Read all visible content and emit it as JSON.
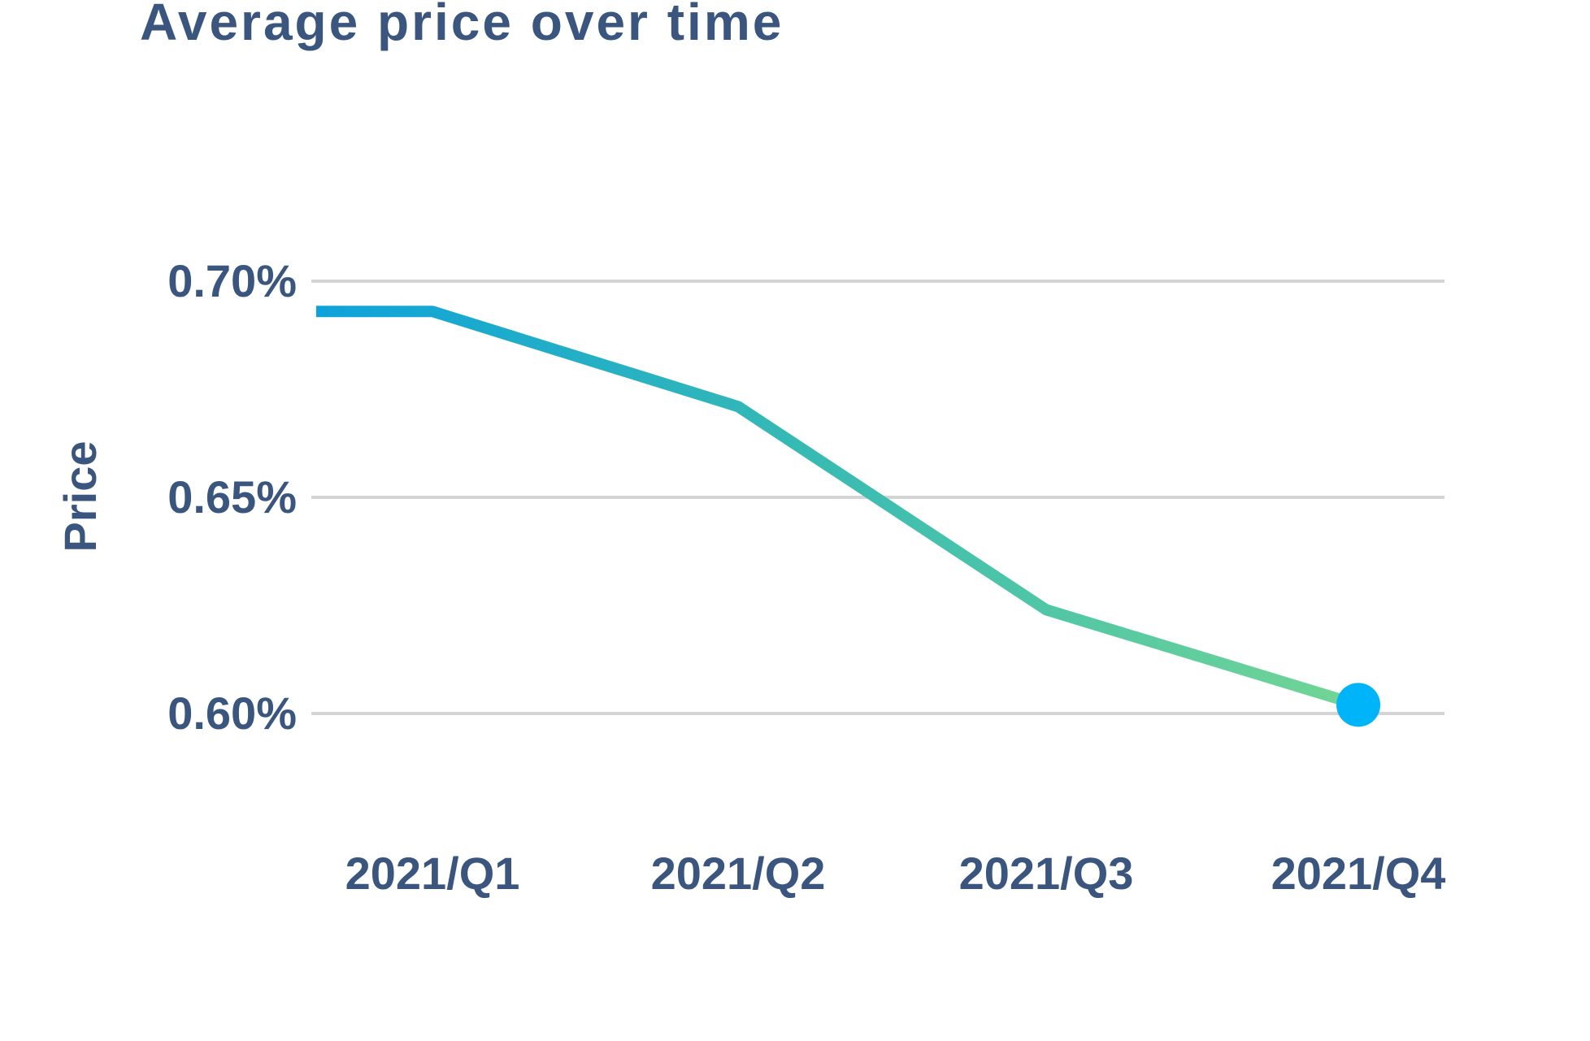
{
  "title": "Average price over time",
  "colors": {
    "heading_text": "#3b567e",
    "grid_line": "#d4d4d4",
    "line_gradient_start": "#0da2db",
    "line_gradient_mid": "#35b9b5",
    "line_gradient_end": "#72d694",
    "end_dot": "#00b4fa",
    "card_background": "#ffffff"
  },
  "chart_data": {
    "type": "line",
    "title": "Average price over time",
    "xlabel": "",
    "ylabel": "Price",
    "categories": [
      "2021/Q1",
      "2021/Q2",
      "2021/Q3",
      "2021/Q4"
    ],
    "values": [
      0.693,
      0.671,
      0.624,
      0.602
    ],
    "unit": "%",
    "ylim": [
      0.585,
      0.715
    ],
    "y_ticks": [
      {
        "value": 0.7,
        "label": "0.70%"
      },
      {
        "value": 0.65,
        "label": "0.65%"
      },
      {
        "value": 0.6,
        "label": "0.60%"
      }
    ],
    "grid": "horizontal-only",
    "legend": "none",
    "notes": "single series; line starts flat at plot left edge at Q1 value; blue-to-green gradient stroke; filled dot marker on last point only"
  }
}
